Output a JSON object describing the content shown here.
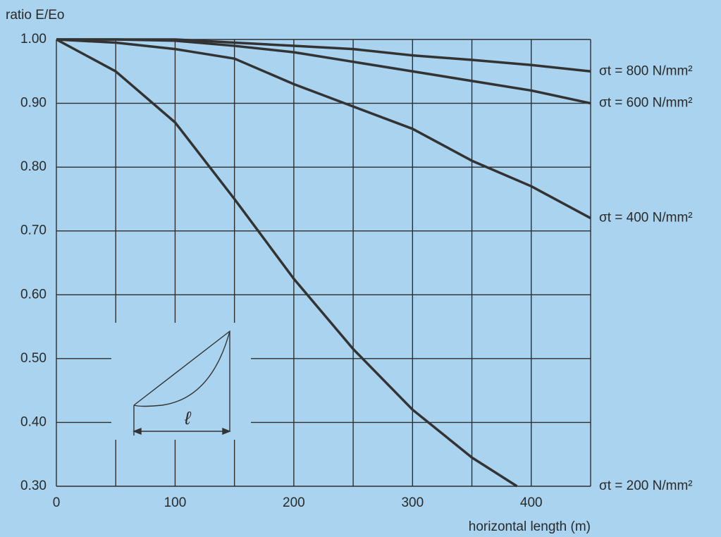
{
  "chart_data": {
    "type": "line",
    "ylabel": "ratio E/Eo",
    "xlabel": "horizontal length (m)",
    "xlim": [
      0,
      450
    ],
    "ylim": [
      0.3,
      1.0
    ],
    "xticks": [
      0,
      100,
      200,
      300,
      400
    ],
    "xminor_ticks": [
      50,
      150,
      250,
      350,
      450
    ],
    "yticks": [
      {
        "value": 1.0,
        "label": "1.00"
      },
      {
        "value": 0.9,
        "label": "0.90"
      },
      {
        "value": 0.8,
        "label": "0.80"
      },
      {
        "value": 0.7,
        "label": "0.70"
      },
      {
        "value": 0.6,
        "label": "0.60"
      },
      {
        "value": 0.5,
        "label": "0.50"
      },
      {
        "value": 0.4,
        "label": "0.40"
      },
      {
        "value": 0.3,
        "label": "0.30"
      }
    ],
    "grid": true,
    "series": [
      {
        "name": "σt = 800 N/mm²",
        "color": "#333333",
        "x": [
          0,
          50,
          100,
          150,
          200,
          250,
          300,
          350,
          400,
          450
        ],
        "values": [
          1.0,
          1.0,
          1.0,
          0.995,
          0.99,
          0.985,
          0.975,
          0.968,
          0.96,
          0.95
        ]
      },
      {
        "name": "σt = 600 N/mm²",
        "color": "#333333",
        "x": [
          0,
          50,
          100,
          150,
          200,
          250,
          300,
          350,
          400,
          450
        ],
        "values": [
          1.0,
          1.0,
          0.998,
          0.99,
          0.98,
          0.965,
          0.95,
          0.935,
          0.92,
          0.9
        ]
      },
      {
        "name": "σt = 400 N/mm²",
        "color": "#333333",
        "x": [
          0,
          50,
          100,
          150,
          200,
          250,
          300,
          350,
          400,
          450
        ],
        "values": [
          1.0,
          0.995,
          0.985,
          0.97,
          0.93,
          0.895,
          0.86,
          0.81,
          0.77,
          0.72
        ]
      },
      {
        "name": "σt = 200 N/mm²",
        "color": "#333333",
        "x": [
          0,
          50,
          100,
          150,
          200,
          250,
          300,
          350,
          388
        ],
        "values": [
          1.0,
          0.95,
          0.87,
          0.75,
          0.625,
          0.515,
          0.42,
          0.345,
          0.3
        ]
      }
    ],
    "inset_label": "ℓ"
  }
}
